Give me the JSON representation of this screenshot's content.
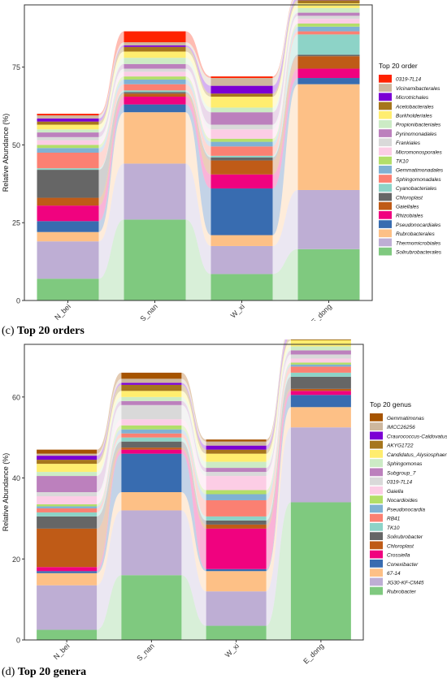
{
  "captions": {
    "c_letter": "(c)",
    "c_text": "Top 20 orders",
    "d_letter": "(d)",
    "d_text": "Top 20 genera"
  },
  "chart_data": [
    {
      "type": "alluvial-stacked-bar",
      "title": "",
      "xlabel": "",
      "ylabel": "Relative Abundance (%)",
      "ylim": [
        0,
        95
      ],
      "yticks": [
        0,
        25,
        50,
        75
      ],
      "categories": [
        "N_bei",
        "S_nan",
        "W_xi",
        "E_dong"
      ],
      "legend_title": "Top 20 order",
      "legend_position": "right",
      "series": [
        {
          "name": "Solirubrobacterales",
          "color": "#7fc97f",
          "values": [
            7.0,
            26.0,
            8.5,
            16.5
          ]
        },
        {
          "name": "Thermomicrobiales",
          "color": "#beaed4",
          "values": [
            12.0,
            18.0,
            9.0,
            19.0
          ]
        },
        {
          "name": "Rubrobacterales",
          "color": "#fdc086",
          "values": [
            3.0,
            16.5,
            3.5,
            34.0
          ]
        },
        {
          "name": "Pseudonocardiales",
          "color": "#386cb0",
          "values": [
            3.5,
            2.5,
            15.0,
            2.0
          ]
        },
        {
          "name": "Rhizobiales",
          "color": "#f0027f",
          "values": [
            5.0,
            2.5,
            4.5,
            3.0
          ]
        },
        {
          "name": "Gaiellales",
          "color": "#bf5b17",
          "values": [
            2.5,
            1.0,
            4.5,
            4.0
          ]
        },
        {
          "name": "Chloroplast",
          "color": "#666666",
          "values": [
            9.0,
            0.5,
            1.0,
            0.5
          ]
        },
        {
          "name": "Cyanobacteriales",
          "color": "#8dd3c7",
          "values": [
            0.5,
            0.5,
            0.5,
            6.5
          ]
        },
        {
          "name": "Sphingomonadales",
          "color": "#fb8072",
          "values": [
            5.0,
            2.0,
            3.0,
            1.0
          ]
        },
        {
          "name": "Gemmatimonadales",
          "color": "#80b1d3",
          "values": [
            1.5,
            1.5,
            1.5,
            1.5
          ]
        },
        {
          "name": "TK10",
          "color": "#b3de69",
          "values": [
            1.0,
            1.0,
            1.0,
            1.0
          ]
        },
        {
          "name": "Micromonosporales",
          "color": "#fccde5",
          "values": [
            1.5,
            1.5,
            3.0,
            1.5
          ]
        },
        {
          "name": "Frankiales",
          "color": "#d9d9d9",
          "values": [
            1.0,
            1.0,
            1.5,
            1.0
          ]
        },
        {
          "name": "Pyrinomonadales",
          "color": "#bc80bd",
          "values": [
            1.5,
            1.5,
            4.0,
            1.0
          ]
        },
        {
          "name": "Propionibacteriales",
          "color": "#ccebc5",
          "values": [
            1.0,
            2.0,
            1.5,
            1.5
          ]
        },
        {
          "name": "Burkholderiales",
          "color": "#ffed6f",
          "values": [
            1.5,
            2.0,
            3.5,
            1.5
          ]
        },
        {
          "name": "Acetobacterales",
          "color": "#a6761d",
          "values": [
            1.0,
            1.5,
            1.0,
            1.0
          ]
        },
        {
          "name": "Microtrichales",
          "color": "#7b00d4",
          "values": [
            1.0,
            0.5,
            2.5,
            1.0
          ]
        },
        {
          "name": "Vicinamibacterales",
          "color": "#cdb79e",
          "values": [
            1.0,
            1.0,
            2.5,
            1.0
          ]
        },
        {
          "name": "0319-7L14",
          "color": "#ff2200",
          "values": [
            0.5,
            3.5,
            0.5,
            0.5
          ]
        }
      ]
    },
    {
      "type": "alluvial-stacked-bar",
      "title": "",
      "xlabel": "",
      "ylabel": "Relative Abundance (%)",
      "ylim": [
        0,
        73
      ],
      "yticks": [
        0,
        20,
        40,
        60
      ],
      "categories": [
        "N_bei",
        "S_nan",
        "W_xi",
        "E_dong"
      ],
      "legend_title": "Top 20 genus",
      "legend_position": "right",
      "series": [
        {
          "name": "Rubrobacter",
          "color": "#7fc97f",
          "values": [
            2.5,
            16.0,
            3.5,
            34.0
          ]
        },
        {
          "name": "JG30-KF-CM45",
          "color": "#beaed4",
          "values": [
            11.0,
            16.0,
            8.5,
            18.5
          ]
        },
        {
          "name": "67-14",
          "color": "#fdc086",
          "values": [
            3.0,
            4.5,
            5.0,
            5.0
          ]
        },
        {
          "name": "Conexibacter",
          "color": "#386cb0",
          "values": [
            0.5,
            9.5,
            0.5,
            3.0
          ]
        },
        {
          "name": "Crossiella",
          "color": "#f0027f",
          "values": [
            1.0,
            1.0,
            10.0,
            1.0
          ]
        },
        {
          "name": "Chloroplast",
          "color": "#bf5b17",
          "values": [
            9.5,
            0.5,
            1.0,
            0.5
          ]
        },
        {
          "name": "Solirubrobacter",
          "color": "#666666",
          "values": [
            3.0,
            1.5,
            1.0,
            3.0
          ]
        },
        {
          "name": "TK10",
          "color": "#8dd3c7",
          "values": [
            1.0,
            1.0,
            1.0,
            1.0
          ]
        },
        {
          "name": "RB41",
          "color": "#fb8072",
          "values": [
            1.0,
            1.0,
            4.0,
            1.5
          ]
        },
        {
          "name": "Pseudonocardia",
          "color": "#80b1d3",
          "values": [
            0.5,
            1.0,
            1.5,
            0.5
          ]
        },
        {
          "name": "Nocardioides",
          "color": "#b3de69",
          "values": [
            0.5,
            1.0,
            1.0,
            0.5
          ]
        },
        {
          "name": "Gaiella",
          "color": "#fccde5",
          "values": [
            2.0,
            1.5,
            3.5,
            1.0
          ]
        },
        {
          "name": "0319-7L14",
          "color": "#d9d9d9",
          "values": [
            1.0,
            3.5,
            1.0,
            1.0
          ]
        },
        {
          "name": "Subgroup_7",
          "color": "#bc80bd",
          "values": [
            4.0,
            1.0,
            1.0,
            1.0
          ]
        },
        {
          "name": "Sphingomonas",
          "color": "#ccebc5",
          "values": [
            1.0,
            1.0,
            1.5,
            1.0
          ]
        },
        {
          "name": "Candidatus_Alysiosphaera",
          "color": "#ffed6f",
          "values": [
            2.0,
            1.5,
            2.0,
            1.5
          ]
        },
        {
          "name": "AKYG1722",
          "color": "#a6761d",
          "values": [
            1.0,
            1.5,
            1.0,
            1.0
          ]
        },
        {
          "name": "Craurococcus-Caldovatus",
          "color": "#7b00d4",
          "values": [
            1.0,
            0.5,
            1.0,
            1.5
          ]
        },
        {
          "name": "IMCC26256",
          "color": "#cdb79e",
          "values": [
            0.5,
            1.0,
            1.0,
            0.5
          ]
        },
        {
          "name": "Gemmatimonas",
          "color": "#a65400",
          "values": [
            1.0,
            1.5,
            0.5,
            0.5
          ]
        }
      ]
    }
  ]
}
